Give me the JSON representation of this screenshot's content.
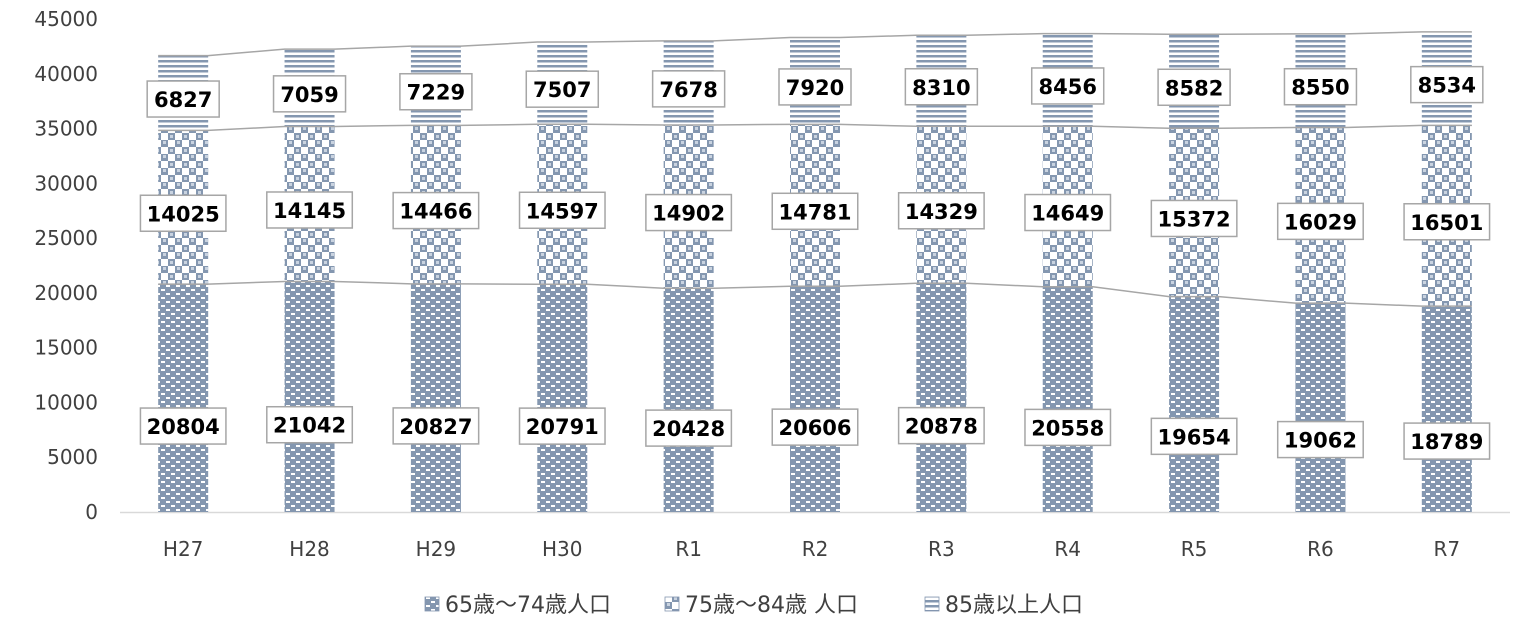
{
  "chart_data": {
    "type": "bar",
    "stacked": true,
    "categories": [
      "H27",
      "H28",
      "H29",
      "H30",
      "R1",
      "R2",
      "R3",
      "R4",
      "R5",
      "R6",
      "R7"
    ],
    "series": [
      {
        "name": "65歳～74歳人口",
        "values": [
          20804,
          21042,
          20827,
          20791,
          20428,
          20606,
          20878,
          20558,
          19654,
          19062,
          18789
        ],
        "color": "#8497b0",
        "pattern": "brick"
      },
      {
        "name": "75歳～84歳 人口",
        "values": [
          14025,
          14145,
          14466,
          14597,
          14902,
          14781,
          14329,
          14649,
          15372,
          16029,
          16501
        ],
        "color": "#8497b0",
        "pattern": "checker"
      },
      {
        "name": "85歳以上人口",
        "values": [
          6827,
          7059,
          7229,
          7507,
          7678,
          7920,
          8310,
          8456,
          8582,
          8550,
          8534
        ],
        "color": "#8497b0",
        "pattern": "hstripe"
      }
    ],
    "yticks": [
      "0",
      "5000",
      "10000",
      "15000",
      "20000",
      "25000",
      "30000",
      "35000",
      "40000",
      "45000"
    ],
    "ylim": [
      0,
      45000
    ],
    "series_lines": true,
    "data_labels": true,
    "legend": "bottom",
    "grid": false
  }
}
